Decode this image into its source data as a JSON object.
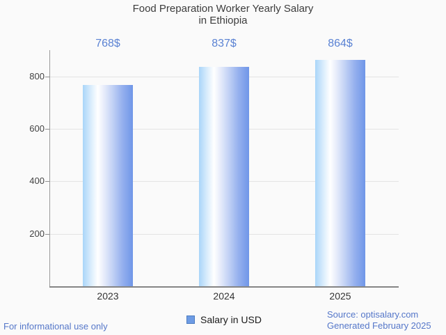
{
  "title": {
    "line1": "Food Preparation Worker Yearly Salary",
    "line2": "in Ethiopia"
  },
  "chart_data": {
    "type": "bar",
    "title": "Food Preparation Worker Yearly Salary in Ethiopia",
    "categories": [
      "2023",
      "2024",
      "2025"
    ],
    "values": [
      768,
      837,
      864
    ],
    "value_labels": [
      "768$",
      "837$",
      "864$"
    ],
    "series_name": "Salary in USD",
    "xlabel": "",
    "ylabel": "",
    "ylim": [
      0,
      900
    ],
    "yticks": [
      200,
      400,
      600,
      800
    ],
    "grid": true,
    "legend_position": "bottom",
    "colors": {
      "bar_gradient": [
        "#a9d5f9",
        "#ffffff",
        "#6f96e8"
      ],
      "value_label": "#5a82d3",
      "legend_swatch_fill": "#6d9be4",
      "legend_swatch_border": "#4c7cc0",
      "gridline": "#e4e4e4",
      "axis": "#858585",
      "text": "#3c3c3c",
      "background": "#fafafa"
    }
  },
  "footer": {
    "left": "For informational use only",
    "source": "Source: optisalary.com",
    "generated": "Generated February 2025",
    "link_color": "#5577c9"
  }
}
